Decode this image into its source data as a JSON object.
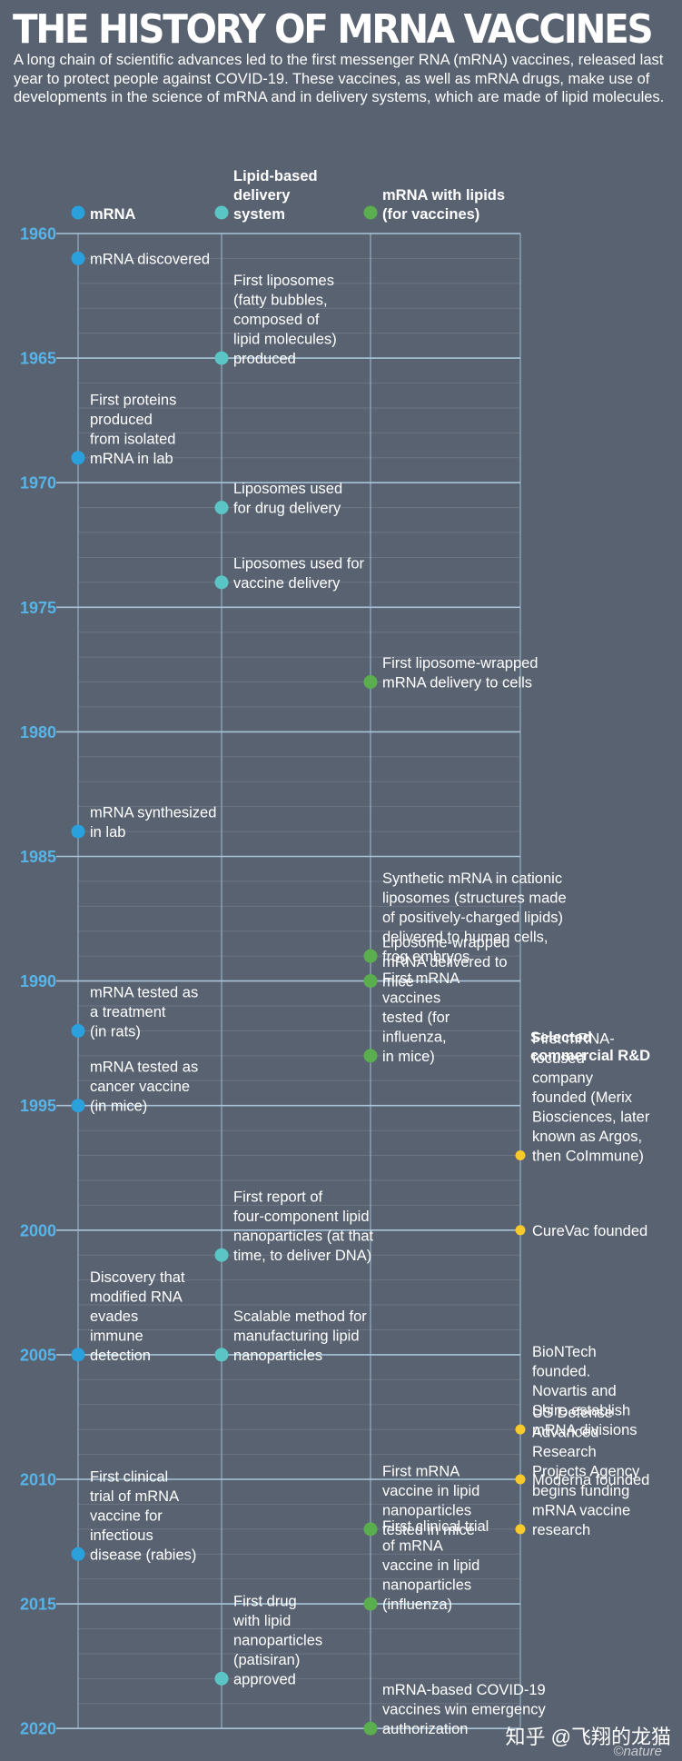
{
  "header": {
    "title": "THE HISTORY OF MRNA VACCINES",
    "intro": "A long chain of scientific advances led to the first messenger RNA (mRNA) vaccines, released last year to protect people against COVID-19. These vaccines, as well as mRNA drugs, make use of developments in the science of mRNA and in delivery systems, which are made of lipid molecules."
  },
  "columns": [
    {
      "id": "mrna",
      "lines": [
        "mRNA"
      ],
      "color": "#2aa0dc"
    },
    {
      "id": "lipid",
      "lines": [
        "Lipid-based",
        "delivery",
        "system"
      ],
      "color": "#5bc4c4"
    },
    {
      "id": "vaccine",
      "lines": [
        "mRNA with lipids",
        "(for vaccines)"
      ],
      "color": "#5aae4e"
    },
    {
      "id": "commercial",
      "lines": [
        "Selected",
        "commercial R&D"
      ],
      "color": "#f6c92c"
    }
  ],
  "years": [
    1960,
    1965,
    1970,
    1975,
    1980,
    1985,
    1990,
    1995,
    2000,
    2005,
    2010,
    2015,
    2020
  ],
  "events": [
    {
      "col": "mrna",
      "year": 1961,
      "lines": [
        "mRNA discovered"
      ]
    },
    {
      "col": "mrna",
      "year": 1969,
      "lines": [
        "First proteins",
        "produced",
        "from isolated",
        "mRNA in lab"
      ]
    },
    {
      "col": "mrna",
      "year": 1984,
      "lines": [
        "mRNA synthesized",
        "in lab"
      ]
    },
    {
      "col": "mrna",
      "year": 1992,
      "lines": [
        "mRNA tested as",
        "a treatment",
        "(in rats)"
      ]
    },
    {
      "col": "mrna",
      "year": 1995,
      "lines": [
        "mRNA tested as",
        "cancer vaccine",
        "(in mice)"
      ]
    },
    {
      "col": "mrna",
      "year": 2005,
      "lines": [
        "Discovery that",
        "modified RNA",
        "evades",
        "immune",
        "detection"
      ]
    },
    {
      "col": "mrna",
      "year": 2013,
      "lines": [
        "First clinical",
        "trial of mRNA",
        "vaccine for",
        "infectious",
        "disease (rabies)"
      ]
    },
    {
      "col": "lipid",
      "year": 1965,
      "lines": [
        "First liposomes",
        "(fatty bubbles,",
        "composed of",
        "lipid molecules)",
        "produced"
      ]
    },
    {
      "col": "lipid",
      "year": 1971,
      "lines": [
        "Liposomes used",
        "for drug delivery"
      ]
    },
    {
      "col": "lipid",
      "year": 1974,
      "lines": [
        "Liposomes used for",
        "vaccine delivery"
      ]
    },
    {
      "col": "lipid",
      "year": 2001,
      "lines": [
        "First report of",
        "four-component lipid",
        "nanoparticles (at that",
        "time, to deliver DNA)"
      ]
    },
    {
      "col": "lipid",
      "year": 2005,
      "lines": [
        "Scalable method for",
        "manufacturing lipid",
        "nanoparticles"
      ]
    },
    {
      "col": "lipid",
      "year": 2018,
      "lines": [
        "First drug",
        "with lipid",
        "nanoparticles",
        "(patisiran)",
        "approved"
      ]
    },
    {
      "col": "vaccine",
      "year": 1978,
      "lines": [
        "First liposome-wrapped",
        "mRNA delivery to cells"
      ]
    },
    {
      "col": "vaccine",
      "year": 1989,
      "lines": [
        "Synthetic mRNA in cationic",
        "liposomes (structures made",
        "of positively-charged lipids)",
        "delivered to human cells,",
        "frog embryos"
      ]
    },
    {
      "col": "vaccine",
      "year": 1990,
      "lines": [
        "Liposome-wrapped",
        "mRNA delivered to",
        "mice"
      ]
    },
    {
      "col": "vaccine",
      "year": 1993,
      "lines": [
        "First mRNA",
        "vaccines",
        "tested (for",
        "influenza,",
        "in mice)"
      ]
    },
    {
      "col": "vaccine",
      "year": 2012,
      "lines": [
        "First mRNA",
        "vaccine in lipid",
        "nanoparticles",
        "tested in mice"
      ]
    },
    {
      "col": "vaccine",
      "year": 2015,
      "lines": [
        "First clinical trial",
        "of mRNA",
        "vaccine in lipid",
        "nanoparticles",
        "(influenza)"
      ]
    },
    {
      "col": "vaccine",
      "year": 2020,
      "lines": [
        "mRNA-based COVID-19",
        "vaccines win emergency",
        "authorization"
      ]
    },
    {
      "col": "commercial",
      "year": 1997,
      "lines": [
        "First mRNA-",
        "focused",
        "company",
        "founded (Merix",
        "Biosciences, later",
        "known as Argos,",
        "then CoImmune)"
      ]
    },
    {
      "col": "commercial",
      "year": 2000,
      "lines": [
        "CureVac founded"
      ]
    },
    {
      "col": "commercial",
      "year": 2008,
      "lines": [
        "BioNTech",
        "founded.",
        "Novartis and",
        "Shire establish",
        "mRNA divisions"
      ]
    },
    {
      "col": "commercial",
      "year": 2010,
      "lines": [
        "Moderna founded"
      ]
    },
    {
      "col": "commercial",
      "year": 2012,
      "lines": [
        "US Defense",
        "Advanced",
        "Research",
        "Projects Agency",
        "begins funding",
        "mRNA vaccine",
        "research"
      ]
    }
  ],
  "credit": {
    "watermark": "知乎 @飞翔的龙猫",
    "source": "©nature"
  }
}
